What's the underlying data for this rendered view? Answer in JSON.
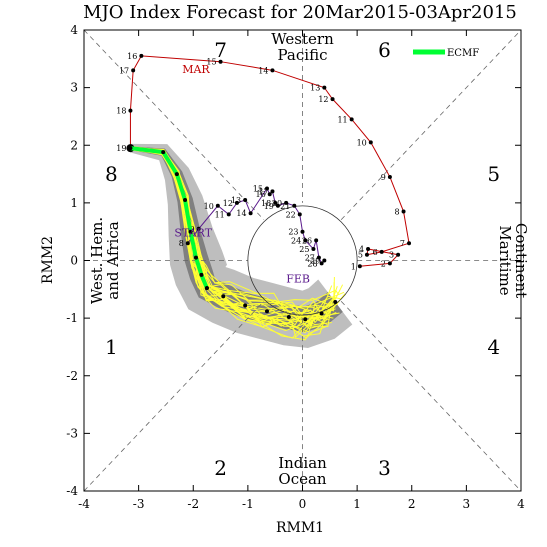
{
  "chart_data": {
    "type": "line",
    "title": "MJO Index Forecast for 20Mar2015-03Apr2015",
    "xlabel": "RMM1",
    "ylabel": "RMM2",
    "xlim": [
      -4,
      4
    ],
    "ylim": [
      -4,
      4
    ],
    "xticks": [
      "-4",
      "-3",
      "-2",
      "-1",
      "0",
      "1",
      "2",
      "3",
      "4"
    ],
    "yticks": [
      "-4",
      "-3",
      "-2",
      "-1",
      "0",
      "1",
      "2",
      "3",
      "4"
    ],
    "grid": false,
    "legend": "top-right",
    "phase_numbers": [
      {
        "label": "1",
        "x": -3.5,
        "y": -1.5
      },
      {
        "label": "2",
        "x": -1.5,
        "y": -3.6
      },
      {
        "label": "3",
        "x": 1.5,
        "y": -3.6
      },
      {
        "label": "4",
        "x": 3.5,
        "y": -1.5
      },
      {
        "label": "5",
        "x": 3.5,
        "y": 1.5
      },
      {
        "label": "6",
        "x": 1.5,
        "y": 3.65
      },
      {
        "label": "7",
        "x": -1.5,
        "y": 3.65
      },
      {
        "label": "8",
        "x": -3.5,
        "y": 1.5
      }
    ],
    "region_labels": {
      "top": [
        "Western",
        "Pacific"
      ],
      "bottom": [
        "Indian",
        "Ocean"
      ],
      "left": [
        "West. Hem.",
        "and Africa"
      ],
      "right": [
        "Maritime",
        "Continent"
      ]
    },
    "month_labels": [
      {
        "text": "MAR",
        "x": -1.95,
        "y": 3.25,
        "color": "#c00000"
      },
      {
        "text": "FEB",
        "x": -0.08,
        "y": -0.38,
        "color": "#5a1a8c"
      },
      {
        "text": "START",
        "x": -2.0,
        "y": 0.42,
        "color": "#5a1a8c"
      }
    ],
    "colors": {
      "observed_mar": "#c00000",
      "observed_feb": "#5a1a8c",
      "ensemble": "#ffff33",
      "ecmf": "#00ff33",
      "spread_outer": "#bebebe",
      "spread_inner": "#808080"
    },
    "series": [
      {
        "name": "",
        "labels": [
          "1",
          "2",
          "3",
          "4",
          "5",
          "6",
          "7",
          "8",
          "9",
          "10",
          "11",
          "12",
          "13",
          "14",
          "15",
          "16",
          "17",
          "18",
          "19"
        ],
        "x": [
          1.05,
          1.6,
          1.75,
          1.2,
          1.18,
          1.45,
          1.95,
          1.85,
          1.6,
          1.25,
          0.9,
          0.55,
          0.4,
          -0.55,
          -1.5,
          -2.95,
          -3.1,
          -3.15,
          -3.15
        ],
        "y": [
          -0.1,
          -0.05,
          0.1,
          0.2,
          0.1,
          0.15,
          0.3,
          0.85,
          1.45,
          2.05,
          2.45,
          2.8,
          3.0,
          3.3,
          3.45,
          3.55,
          3.3,
          2.6,
          1.95
        ]
      },
      {
        "name": "",
        "labels": [
          "8",
          "9",
          "10",
          "11",
          "12",
          "13",
          "14",
          "15",
          "16",
          "17",
          "18",
          "19",
          "20",
          "21",
          "22",
          "23",
          "24",
          "25",
          "26",
          "27",
          "28",
          "29"
        ],
        "x": [
          -2.1,
          -1.9,
          -1.55,
          -1.35,
          -1.2,
          -1.05,
          -0.95,
          -0.65,
          -0.6,
          -0.55,
          -0.5,
          -0.45,
          -0.3,
          -0.15,
          -0.05,
          0.0,
          0.05,
          0.2,
          0.25,
          0.3,
          0.35,
          0.4
        ],
        "y": [
          0.3,
          0.55,
          0.95,
          0.8,
          1.0,
          1.05,
          0.82,
          1.25,
          1.15,
          1.2,
          1.0,
          0.95,
          1.0,
          0.95,
          0.8,
          0.5,
          0.35,
          0.2,
          0.35,
          0.05,
          -0.05,
          0.0
        ]
      },
      {
        "name": "ECMF",
        "x": [
          -3.15,
          -2.55,
          -2.3,
          -2.15,
          -2.05,
          -1.95,
          -1.85,
          -1.75
        ],
        "y": [
          1.95,
          1.88,
          1.5,
          1.05,
          0.5,
          0.05,
          -0.25,
          -0.48
        ]
      },
      {
        "name": "",
        "x": [
          -1.75,
          -1.45,
          -1.05,
          -0.65,
          -0.25,
          0.05,
          0.35,
          0.6
        ],
        "y": [
          -0.48,
          -0.62,
          -0.78,
          -0.88,
          -0.98,
          -1.02,
          -0.92,
          -0.72
        ]
      }
    ]
  }
}
